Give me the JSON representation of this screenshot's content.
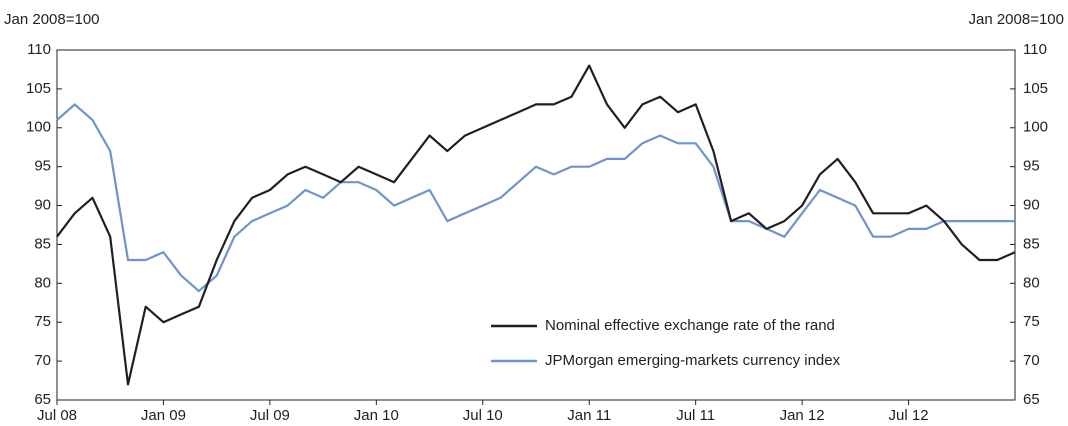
{
  "chart_data": {
    "type": "line",
    "y_label": "Jan 2008=100",
    "y2_label": "Jan 2008=100",
    "categories": [
      "Jul 08",
      null,
      null,
      null,
      null,
      null,
      "Jan 09",
      null,
      null,
      null,
      null,
      null,
      "Jul 09",
      null,
      null,
      null,
      null,
      null,
      "Jan 10",
      null,
      null,
      null,
      null,
      null,
      "Jul 10",
      null,
      null,
      null,
      null,
      null,
      "Jan 11",
      null,
      null,
      null,
      null,
      null,
      "Jul 11",
      null,
      null,
      null,
      null,
      null,
      "Jan 12",
      null,
      null,
      null,
      null,
      null,
      "Jul 12",
      null,
      null,
      null,
      null,
      null,
      null
    ],
    "series": [
      {
        "name": "Nominal effective exchange rate of the rand",
        "color": "#231f20",
        "values": [
          86,
          89,
          91,
          86,
          67,
          77,
          75,
          76,
          77,
          83,
          88,
          91,
          92,
          94,
          95,
          94,
          93,
          95,
          94,
          93,
          96,
          99,
          97,
          99,
          100,
          101,
          102,
          103,
          103,
          104,
          108,
          103,
          100,
          103,
          104,
          102,
          103,
          97,
          88,
          89,
          87,
          88,
          90,
          94,
          96,
          93,
          89,
          89,
          89,
          90,
          88,
          85,
          83,
          83,
          84
        ]
      },
      {
        "name": "JPMorgan emerging-markets currency index",
        "color": "#6d95cc",
        "values": [
          101,
          103,
          101,
          97,
          83,
          83,
          84,
          81,
          79,
          81,
          86,
          88,
          89,
          90,
          92,
          91,
          93,
          93,
          92,
          90,
          91,
          92,
          88,
          89,
          90,
          91,
          93,
          95,
          94,
          95,
          95,
          96,
          96,
          98,
          99,
          98,
          98,
          95,
          88,
          88,
          87,
          86,
          89,
          92,
          91,
          90,
          86,
          86,
          87,
          87,
          88,
          88,
          88,
          88,
          88
        ]
      }
    ],
    "ylim": [
      65,
      110
    ],
    "yticks": [
      65,
      70,
      75,
      80,
      85,
      90,
      95,
      100,
      105,
      110
    ],
    "y2lim": [
      65,
      110
    ],
    "y2ticks": [
      65,
      70,
      75,
      80,
      85,
      90,
      95,
      100,
      105,
      110
    ]
  }
}
